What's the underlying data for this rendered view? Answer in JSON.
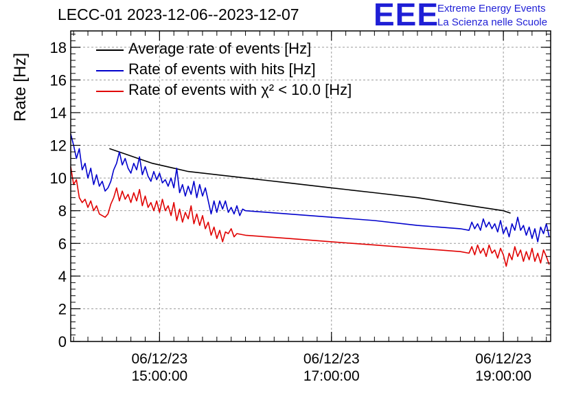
{
  "title": "LECC-01 2023-12-06--2023-12-07",
  "logo": {
    "mark": "EEE",
    "line1": "Extreme Energy Events",
    "line2": "La Scienza nelle Scuole",
    "color": "#1f1fd6"
  },
  "chart_data": {
    "type": "line",
    "title": "LECC-01 2023-12-06--2023-12-07",
    "ylabel": "Rate [Hz]",
    "xlabel": "",
    "xlim": [
      "2023-12-06 13:58",
      "2023-12-06 19:33"
    ],
    "ylim": [
      0,
      19
    ],
    "yticks": [
      "0",
      "2",
      "4",
      "6",
      "8",
      "10",
      "12",
      "14",
      "16",
      "18"
    ],
    "xticks": [
      {
        "time": "2023-12-06 15:00",
        "date_label": "06/12/23",
        "time_label": "15:00:00"
      },
      {
        "time": "2023-12-06 17:00",
        "date_label": "06/12/23",
        "time_label": "17:00:00"
      },
      {
        "time": "2023-12-06 19:00",
        "date_label": "06/12/23",
        "time_label": "19:00:00"
      }
    ],
    "grid": true,
    "legend_position": "top-left",
    "series": [
      {
        "name": "Average rate of events [Hz]",
        "color": "#000000",
        "points": [
          [
            "14:25",
            11.8
          ],
          [
            "14:35",
            11.5
          ],
          [
            "14:45",
            11.2
          ],
          [
            "14:55",
            10.9
          ],
          [
            "15:10",
            10.6
          ],
          [
            "15:20",
            10.4
          ],
          [
            "15:40",
            10.2
          ],
          [
            "16:00",
            10.0
          ],
          [
            "16:30",
            9.7
          ],
          [
            "17:00",
            9.4
          ],
          [
            "17:30",
            9.1
          ],
          [
            "18:00",
            8.8
          ],
          [
            "18:30",
            8.4
          ],
          [
            "19:00",
            8.0
          ],
          [
            "19:05",
            7.85
          ]
        ]
      },
      {
        "name": "Rate of events with hits [Hz]",
        "color": "#0000cc",
        "points": [
          [
            "13:58",
            12.7
          ],
          [
            "14:00",
            12.0
          ],
          [
            "14:02",
            11.2
          ],
          [
            "14:04",
            11.8
          ],
          [
            "14:06",
            10.5
          ],
          [
            "14:08",
            10.9
          ],
          [
            "14:10",
            10.0
          ],
          [
            "14:12",
            10.6
          ],
          [
            "14:14",
            9.6
          ],
          [
            "14:16",
            10.2
          ],
          [
            "14:18",
            9.5
          ],
          [
            "14:20",
            9.8
          ],
          [
            "14:22",
            9.2
          ],
          [
            "14:24",
            9.4
          ],
          [
            "14:26",
            9.8
          ],
          [
            "14:28",
            10.5
          ],
          [
            "14:30",
            10.9
          ],
          [
            "14:32",
            11.6
          ],
          [
            "14:34",
            10.8
          ],
          [
            "14:36",
            11.2
          ],
          [
            "14:38",
            10.6
          ],
          [
            "14:40",
            10.3
          ],
          [
            "14:42",
            10.9
          ],
          [
            "14:44",
            10.5
          ],
          [
            "14:46",
            11.3
          ],
          [
            "14:48",
            10.2
          ],
          [
            "14:50",
            10.7
          ],
          [
            "14:52",
            10.1
          ],
          [
            "14:54",
            9.8
          ],
          [
            "14:56",
            10.4
          ],
          [
            "14:58",
            9.9
          ],
          [
            "15:00",
            10.3
          ],
          [
            "15:02",
            9.7
          ],
          [
            "15:04",
            9.9
          ],
          [
            "15:06",
            9.5
          ],
          [
            "15:08",
            10.0
          ],
          [
            "15:10",
            9.4
          ],
          [
            "15:12",
            10.6
          ],
          [
            "15:14",
            9.1
          ],
          [
            "15:16",
            9.6
          ],
          [
            "15:18",
            8.9
          ],
          [
            "15:20",
            9.5
          ],
          [
            "15:22",
            9.0
          ],
          [
            "15:24",
            9.8
          ],
          [
            "15:26",
            8.8
          ],
          [
            "15:28",
            9.6
          ],
          [
            "15:30",
            8.9
          ],
          [
            "15:32",
            9.4
          ],
          [
            "15:34",
            8.6
          ],
          [
            "15:36",
            7.8
          ],
          [
            "15:38",
            8.6
          ],
          [
            "15:40",
            7.9
          ],
          [
            "15:42",
            8.6
          ],
          [
            "15:44",
            8.1
          ],
          [
            "15:46",
            8.6
          ],
          [
            "15:48",
            7.9
          ],
          [
            "15:50",
            8.2
          ],
          [
            "15:52",
            7.8
          ],
          [
            "15:54",
            8.3
          ],
          [
            "15:56",
            7.7
          ],
          [
            "15:58",
            8.1
          ],
          [
            "16:00",
            8.0
          ],
          [
            "16:30",
            7.8
          ],
          [
            "17:00",
            7.6
          ],
          [
            "17:30",
            7.4
          ],
          [
            "18:00",
            7.1
          ],
          [
            "18:30",
            6.9
          ],
          [
            "18:36",
            6.8
          ],
          [
            "18:38",
            7.3
          ],
          [
            "18:40",
            6.9
          ],
          [
            "18:42",
            7.2
          ],
          [
            "18:44",
            6.8
          ],
          [
            "18:46",
            7.5
          ],
          [
            "18:48",
            7.0
          ],
          [
            "18:50",
            7.3
          ],
          [
            "18:52",
            6.9
          ],
          [
            "18:54",
            7.2
          ],
          [
            "18:56",
            6.7
          ],
          [
            "18:58",
            7.4
          ],
          [
            "19:00",
            6.6
          ],
          [
            "19:02",
            7.0
          ],
          [
            "19:04",
            6.4
          ],
          [
            "19:06",
            7.2
          ],
          [
            "19:08",
            6.8
          ],
          [
            "19:10",
            7.6
          ],
          [
            "19:12",
            6.8
          ],
          [
            "19:14",
            7.1
          ],
          [
            "19:16",
            6.5
          ],
          [
            "19:18",
            7.0
          ],
          [
            "19:20",
            6.3
          ],
          [
            "19:22",
            6.9
          ],
          [
            "19:24",
            6.1
          ],
          [
            "19:26",
            7.0
          ],
          [
            "19:28",
            6.6
          ],
          [
            "19:30",
            7.2
          ],
          [
            "19:32",
            6.4
          ]
        ]
      },
      {
        "name": "Rate of events with χ² < 10.0 [Hz]",
        "color": "#e00000",
        "points": [
          [
            "13:58",
            10.7
          ],
          [
            "14:00",
            9.6
          ],
          [
            "14:02",
            9.9
          ],
          [
            "14:04",
            8.8
          ],
          [
            "14:06",
            8.5
          ],
          [
            "14:08",
            8.7
          ],
          [
            "14:10",
            8.2
          ],
          [
            "14:12",
            8.6
          ],
          [
            "14:14",
            8.0
          ],
          [
            "14:16",
            8.3
          ],
          [
            "14:18",
            7.8
          ],
          [
            "14:20",
            7.7
          ],
          [
            "14:22",
            7.6
          ],
          [
            "14:24",
            7.8
          ],
          [
            "14:26",
            8.4
          ],
          [
            "14:28",
            8.8
          ],
          [
            "14:30",
            9.4
          ],
          [
            "14:32",
            8.6
          ],
          [
            "14:34",
            9.2
          ],
          [
            "14:36",
            8.7
          ],
          [
            "14:38",
            9.0
          ],
          [
            "14:40",
            8.5
          ],
          [
            "14:42",
            9.1
          ],
          [
            "14:44",
            8.6
          ],
          [
            "14:46",
            9.3
          ],
          [
            "14:48",
            8.3
          ],
          [
            "14:50",
            8.9
          ],
          [
            "14:52",
            8.2
          ],
          [
            "14:54",
            8.5
          ],
          [
            "14:56",
            8.0
          ],
          [
            "14:58",
            8.6
          ],
          [
            "15:00",
            7.9
          ],
          [
            "15:02",
            8.7
          ],
          [
            "15:04",
            8.0
          ],
          [
            "15:06",
            8.3
          ],
          [
            "15:08",
            7.7
          ],
          [
            "15:10",
            8.5
          ],
          [
            "15:12",
            7.4
          ],
          [
            "15:14",
            8.1
          ],
          [
            "15:16",
            7.3
          ],
          [
            "15:18",
            7.9
          ],
          [
            "15:20",
            7.5
          ],
          [
            "15:22",
            8.3
          ],
          [
            "15:24",
            7.2
          ],
          [
            "15:26",
            7.8
          ],
          [
            "15:28",
            7.1
          ],
          [
            "15:30",
            7.7
          ],
          [
            "15:32",
            6.9
          ],
          [
            "15:34",
            7.3
          ],
          [
            "15:36",
            6.5
          ],
          [
            "15:38",
            7.0
          ],
          [
            "15:40",
            6.3
          ],
          [
            "15:42",
            6.8
          ],
          [
            "15:44",
            6.1
          ],
          [
            "15:46",
            6.7
          ],
          [
            "15:48",
            6.6
          ],
          [
            "15:50",
            6.9
          ],
          [
            "15:52",
            6.4
          ],
          [
            "15:54",
            6.6
          ],
          [
            "16:00",
            6.5
          ],
          [
            "16:30",
            6.3
          ],
          [
            "17:00",
            6.1
          ],
          [
            "17:30",
            5.9
          ],
          [
            "18:00",
            5.7
          ],
          [
            "18:30",
            5.5
          ],
          [
            "18:36",
            5.4
          ],
          [
            "18:38",
            5.8
          ],
          [
            "18:40",
            5.3
          ],
          [
            "18:42",
            5.9
          ],
          [
            "18:44",
            5.4
          ],
          [
            "18:46",
            5.7
          ],
          [
            "18:48",
            5.2
          ],
          [
            "18:50",
            5.9
          ],
          [
            "18:52",
            5.4
          ],
          [
            "18:54",
            5.6
          ],
          [
            "18:56",
            5.1
          ],
          [
            "18:58",
            5.7
          ],
          [
            "19:00",
            5.3
          ],
          [
            "19:02",
            4.6
          ],
          [
            "19:04",
            5.4
          ],
          [
            "19:06",
            5.0
          ],
          [
            "19:08",
            5.8
          ],
          [
            "19:10",
            5.2
          ],
          [
            "19:12",
            5.6
          ],
          [
            "19:14",
            4.9
          ],
          [
            "19:16",
            5.5
          ],
          [
            "19:18",
            5.0
          ],
          [
            "19:20",
            5.7
          ],
          [
            "19:22",
            4.9
          ],
          [
            "19:24",
            5.4
          ],
          [
            "19:26",
            4.8
          ],
          [
            "19:28",
            5.6
          ],
          [
            "19:30",
            5.2
          ],
          [
            "19:32",
            4.7
          ]
        ]
      }
    ]
  }
}
